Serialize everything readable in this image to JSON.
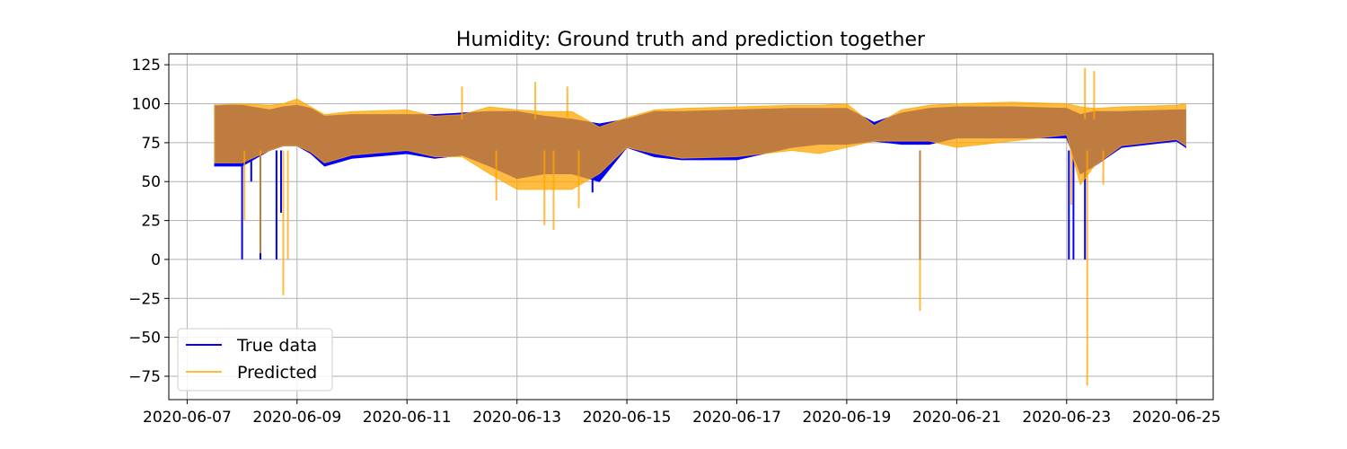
{
  "chart_data": {
    "type": "line",
    "title": "Humidity: Ground truth and prediction together",
    "xlabel": "",
    "ylabel": "",
    "grid": true,
    "legend_position": "lower-left",
    "x_domain": [
      "2020-06-06T16:00",
      "2020-06-25T16:00"
    ],
    "ylim": [
      -90,
      132
    ],
    "y_ticks": [
      -75,
      -50,
      -25,
      0,
      25,
      50,
      75,
      100,
      125
    ],
    "x_ticks": [
      "2020-06-07",
      "2020-06-09",
      "2020-06-11",
      "2020-06-13",
      "2020-06-15",
      "2020-06-17",
      "2020-06-19",
      "2020-06-21",
      "2020-06-23",
      "2020-06-25"
    ],
    "series": [
      {
        "name": "True data",
        "color": "#0000ff",
        "upper": [
          [
            "2020-06-07T12:00",
            99
          ],
          [
            "2020-06-08T00:00",
            99
          ],
          [
            "2020-06-08T12:00",
            96
          ],
          [
            "2020-06-08T18:00",
            98
          ],
          [
            "2020-06-09T00:00",
            99
          ],
          [
            "2020-06-09T06:00",
            97
          ],
          [
            "2020-06-09T12:00",
            92
          ],
          [
            "2020-06-10T00:00",
            93
          ],
          [
            "2020-06-11T00:00",
            93
          ],
          [
            "2020-06-11T12:00",
            93
          ],
          [
            "2020-06-12T00:00",
            94
          ],
          [
            "2020-06-12T12:00",
            95
          ],
          [
            "2020-06-13T00:00",
            95
          ],
          [
            "2020-06-13T12:00",
            92
          ],
          [
            "2020-06-14T00:00",
            90
          ],
          [
            "2020-06-14T12:00",
            87
          ],
          [
            "2020-06-15T00:00",
            90
          ],
          [
            "2020-06-15T12:00",
            95
          ],
          [
            "2020-06-16T00:00",
            95
          ],
          [
            "2020-06-17T00:00",
            96
          ],
          [
            "2020-06-18T00:00",
            97
          ],
          [
            "2020-06-18T12:00",
            97
          ],
          [
            "2020-06-19T00:00",
            97
          ],
          [
            "2020-06-19T12:00",
            88
          ],
          [
            "2020-06-20T00:00",
            94
          ],
          [
            "2020-06-20T12:00",
            97
          ],
          [
            "2020-06-21T00:00",
            98
          ],
          [
            "2020-06-22T00:00",
            98
          ],
          [
            "2020-06-23T00:00",
            97
          ],
          [
            "2020-06-23T06:00",
            93
          ],
          [
            "2020-06-23T12:00",
            95
          ],
          [
            "2020-06-24T00:00",
            95
          ],
          [
            "2020-06-25T00:00",
            96
          ],
          [
            "2020-06-25T04:00",
            96
          ]
        ],
        "lower": [
          [
            "2020-06-07T12:00",
            60
          ],
          [
            "2020-06-08T00:00",
            60
          ],
          [
            "2020-06-08T12:00",
            70
          ],
          [
            "2020-06-08T18:00",
            73
          ],
          [
            "2020-06-09T00:00",
            73
          ],
          [
            "2020-06-09T06:00",
            68
          ],
          [
            "2020-06-09T12:00",
            60
          ],
          [
            "2020-06-10T00:00",
            65
          ],
          [
            "2020-06-11T00:00",
            68
          ],
          [
            "2020-06-11T12:00",
            65
          ],
          [
            "2020-06-12T00:00",
            67
          ],
          [
            "2020-06-12T12:00",
            60
          ],
          [
            "2020-06-13T00:00",
            52
          ],
          [
            "2020-06-13T12:00",
            55
          ],
          [
            "2020-06-14T00:00",
            55
          ],
          [
            "2020-06-14T12:00",
            50
          ],
          [
            "2020-06-15T00:00",
            72
          ],
          [
            "2020-06-15T12:00",
            66
          ],
          [
            "2020-06-16T00:00",
            64
          ],
          [
            "2020-06-17T00:00",
            64
          ],
          [
            "2020-06-18T00:00",
            72
          ],
          [
            "2020-06-18T12:00",
            74
          ],
          [
            "2020-06-19T00:00",
            74
          ],
          [
            "2020-06-19T12:00",
            76
          ],
          [
            "2020-06-20T00:00",
            74
          ],
          [
            "2020-06-20T12:00",
            74
          ],
          [
            "2020-06-21T00:00",
            78
          ],
          [
            "2020-06-22T00:00",
            78
          ],
          [
            "2020-06-23T00:00",
            78
          ],
          [
            "2020-06-23T06:00",
            55
          ],
          [
            "2020-06-23T12:00",
            60
          ],
          [
            "2020-06-24T00:00",
            72
          ],
          [
            "2020-06-25T00:00",
            76
          ],
          [
            "2020-06-25T04:00",
            72
          ]
        ],
        "spikes": [
          [
            "2020-06-08T00:00",
            0
          ],
          [
            "2020-06-08T04:00",
            50
          ],
          [
            "2020-06-08T08:00",
            0
          ],
          [
            "2020-06-08T15:00",
            0
          ],
          [
            "2020-06-08T17:00",
            30
          ],
          [
            "2020-06-20T08:00",
            0
          ],
          [
            "2020-06-23T01:00",
            0
          ],
          [
            "2020-06-23T03:00",
            0
          ],
          [
            "2020-06-23T08:00",
            0
          ],
          [
            "2020-06-14T09:00",
            43
          ]
        ]
      },
      {
        "name": "Predicted",
        "color": "#ffa500",
        "upper": [
          [
            "2020-06-07T12:00",
            99
          ],
          [
            "2020-06-08T00:00",
            100
          ],
          [
            "2020-06-08T12:00",
            99
          ],
          [
            "2020-06-08T18:00",
            100
          ],
          [
            "2020-06-09T00:00",
            103
          ],
          [
            "2020-06-09T06:00",
            98
          ],
          [
            "2020-06-09T12:00",
            93
          ],
          [
            "2020-06-10T00:00",
            95
          ],
          [
            "2020-06-11T00:00",
            96
          ],
          [
            "2020-06-11T12:00",
            92
          ],
          [
            "2020-06-12T00:00",
            93
          ],
          [
            "2020-06-12T12:00",
            98
          ],
          [
            "2020-06-13T00:00",
            96
          ],
          [
            "2020-06-13T12:00",
            95
          ],
          [
            "2020-06-14T00:00",
            95
          ],
          [
            "2020-06-14T12:00",
            85
          ],
          [
            "2020-06-15T00:00",
            91
          ],
          [
            "2020-06-15T12:00",
            96
          ],
          [
            "2020-06-16T00:00",
            97
          ],
          [
            "2020-06-17T00:00",
            98
          ],
          [
            "2020-06-18T00:00",
            99
          ],
          [
            "2020-06-18T12:00",
            99
          ],
          [
            "2020-06-19T00:00",
            100
          ],
          [
            "2020-06-19T12:00",
            86
          ],
          [
            "2020-06-20T00:00",
            96
          ],
          [
            "2020-06-20T12:00",
            99
          ],
          [
            "2020-06-21T00:00",
            100
          ],
          [
            "2020-06-22T00:00",
            101
          ],
          [
            "2020-06-23T00:00",
            100
          ],
          [
            "2020-06-23T06:00",
            98
          ],
          [
            "2020-06-23T12:00",
            97
          ],
          [
            "2020-06-24T00:00",
            98
          ],
          [
            "2020-06-25T00:00",
            99
          ],
          [
            "2020-06-25T04:00",
            100
          ]
        ],
        "lower": [
          [
            "2020-06-07T12:00",
            62
          ],
          [
            "2020-06-08T00:00",
            62
          ],
          [
            "2020-06-08T12:00",
            70
          ],
          [
            "2020-06-08T18:00",
            73
          ],
          [
            "2020-06-09T00:00",
            73
          ],
          [
            "2020-06-09T06:00",
            69
          ],
          [
            "2020-06-09T12:00",
            62
          ],
          [
            "2020-06-10T00:00",
            67
          ],
          [
            "2020-06-11T00:00",
            70
          ],
          [
            "2020-06-11T12:00",
            66
          ],
          [
            "2020-06-12T00:00",
            66
          ],
          [
            "2020-06-12T12:00",
            55
          ],
          [
            "2020-06-13T00:00",
            45
          ],
          [
            "2020-06-13T12:00",
            45
          ],
          [
            "2020-06-14T00:00",
            45
          ],
          [
            "2020-06-14T12:00",
            55
          ],
          [
            "2020-06-15T00:00",
            72
          ],
          [
            "2020-06-15T12:00",
            68
          ],
          [
            "2020-06-16T00:00",
            65
          ],
          [
            "2020-06-17T00:00",
            66
          ],
          [
            "2020-06-18T00:00",
            70
          ],
          [
            "2020-06-18T12:00",
            68
          ],
          [
            "2020-06-19T00:00",
            72
          ],
          [
            "2020-06-19T12:00",
            76
          ],
          [
            "2020-06-20T00:00",
            76
          ],
          [
            "2020-06-20T12:00",
            76
          ],
          [
            "2020-06-21T00:00",
            72
          ],
          [
            "2020-06-22T00:00",
            76
          ],
          [
            "2020-06-23T00:00",
            80
          ],
          [
            "2020-06-23T06:00",
            48
          ],
          [
            "2020-06-23T12:00",
            60
          ],
          [
            "2020-06-24T00:00",
            73
          ],
          [
            "2020-06-25T00:00",
            77
          ],
          [
            "2020-06-25T04:00",
            73
          ]
        ],
        "spikes": [
          [
            "2020-06-08T01:00",
            25
          ],
          [
            "2020-06-08T08:00",
            4
          ],
          [
            "2020-06-08T18:00",
            -23
          ],
          [
            "2020-06-08T20:00",
            0
          ],
          [
            "2020-06-12T00:00",
            111
          ],
          [
            "2020-06-12T15:00",
            38
          ],
          [
            "2020-06-13T08:00",
            114
          ],
          [
            "2020-06-13T12:00",
            22
          ],
          [
            "2020-06-13T16:00",
            19
          ],
          [
            "2020-06-13T22:00",
            111
          ],
          [
            "2020-06-14T03:00",
            33
          ],
          [
            "2020-06-20T08:00",
            -33
          ],
          [
            "2020-06-23T02:00",
            35
          ],
          [
            "2020-06-23T08:00",
            123
          ],
          [
            "2020-06-23T09:00",
            -81
          ],
          [
            "2020-06-23T12:00",
            121
          ],
          [
            "2020-06-23T16:00",
            48
          ]
        ]
      }
    ]
  }
}
